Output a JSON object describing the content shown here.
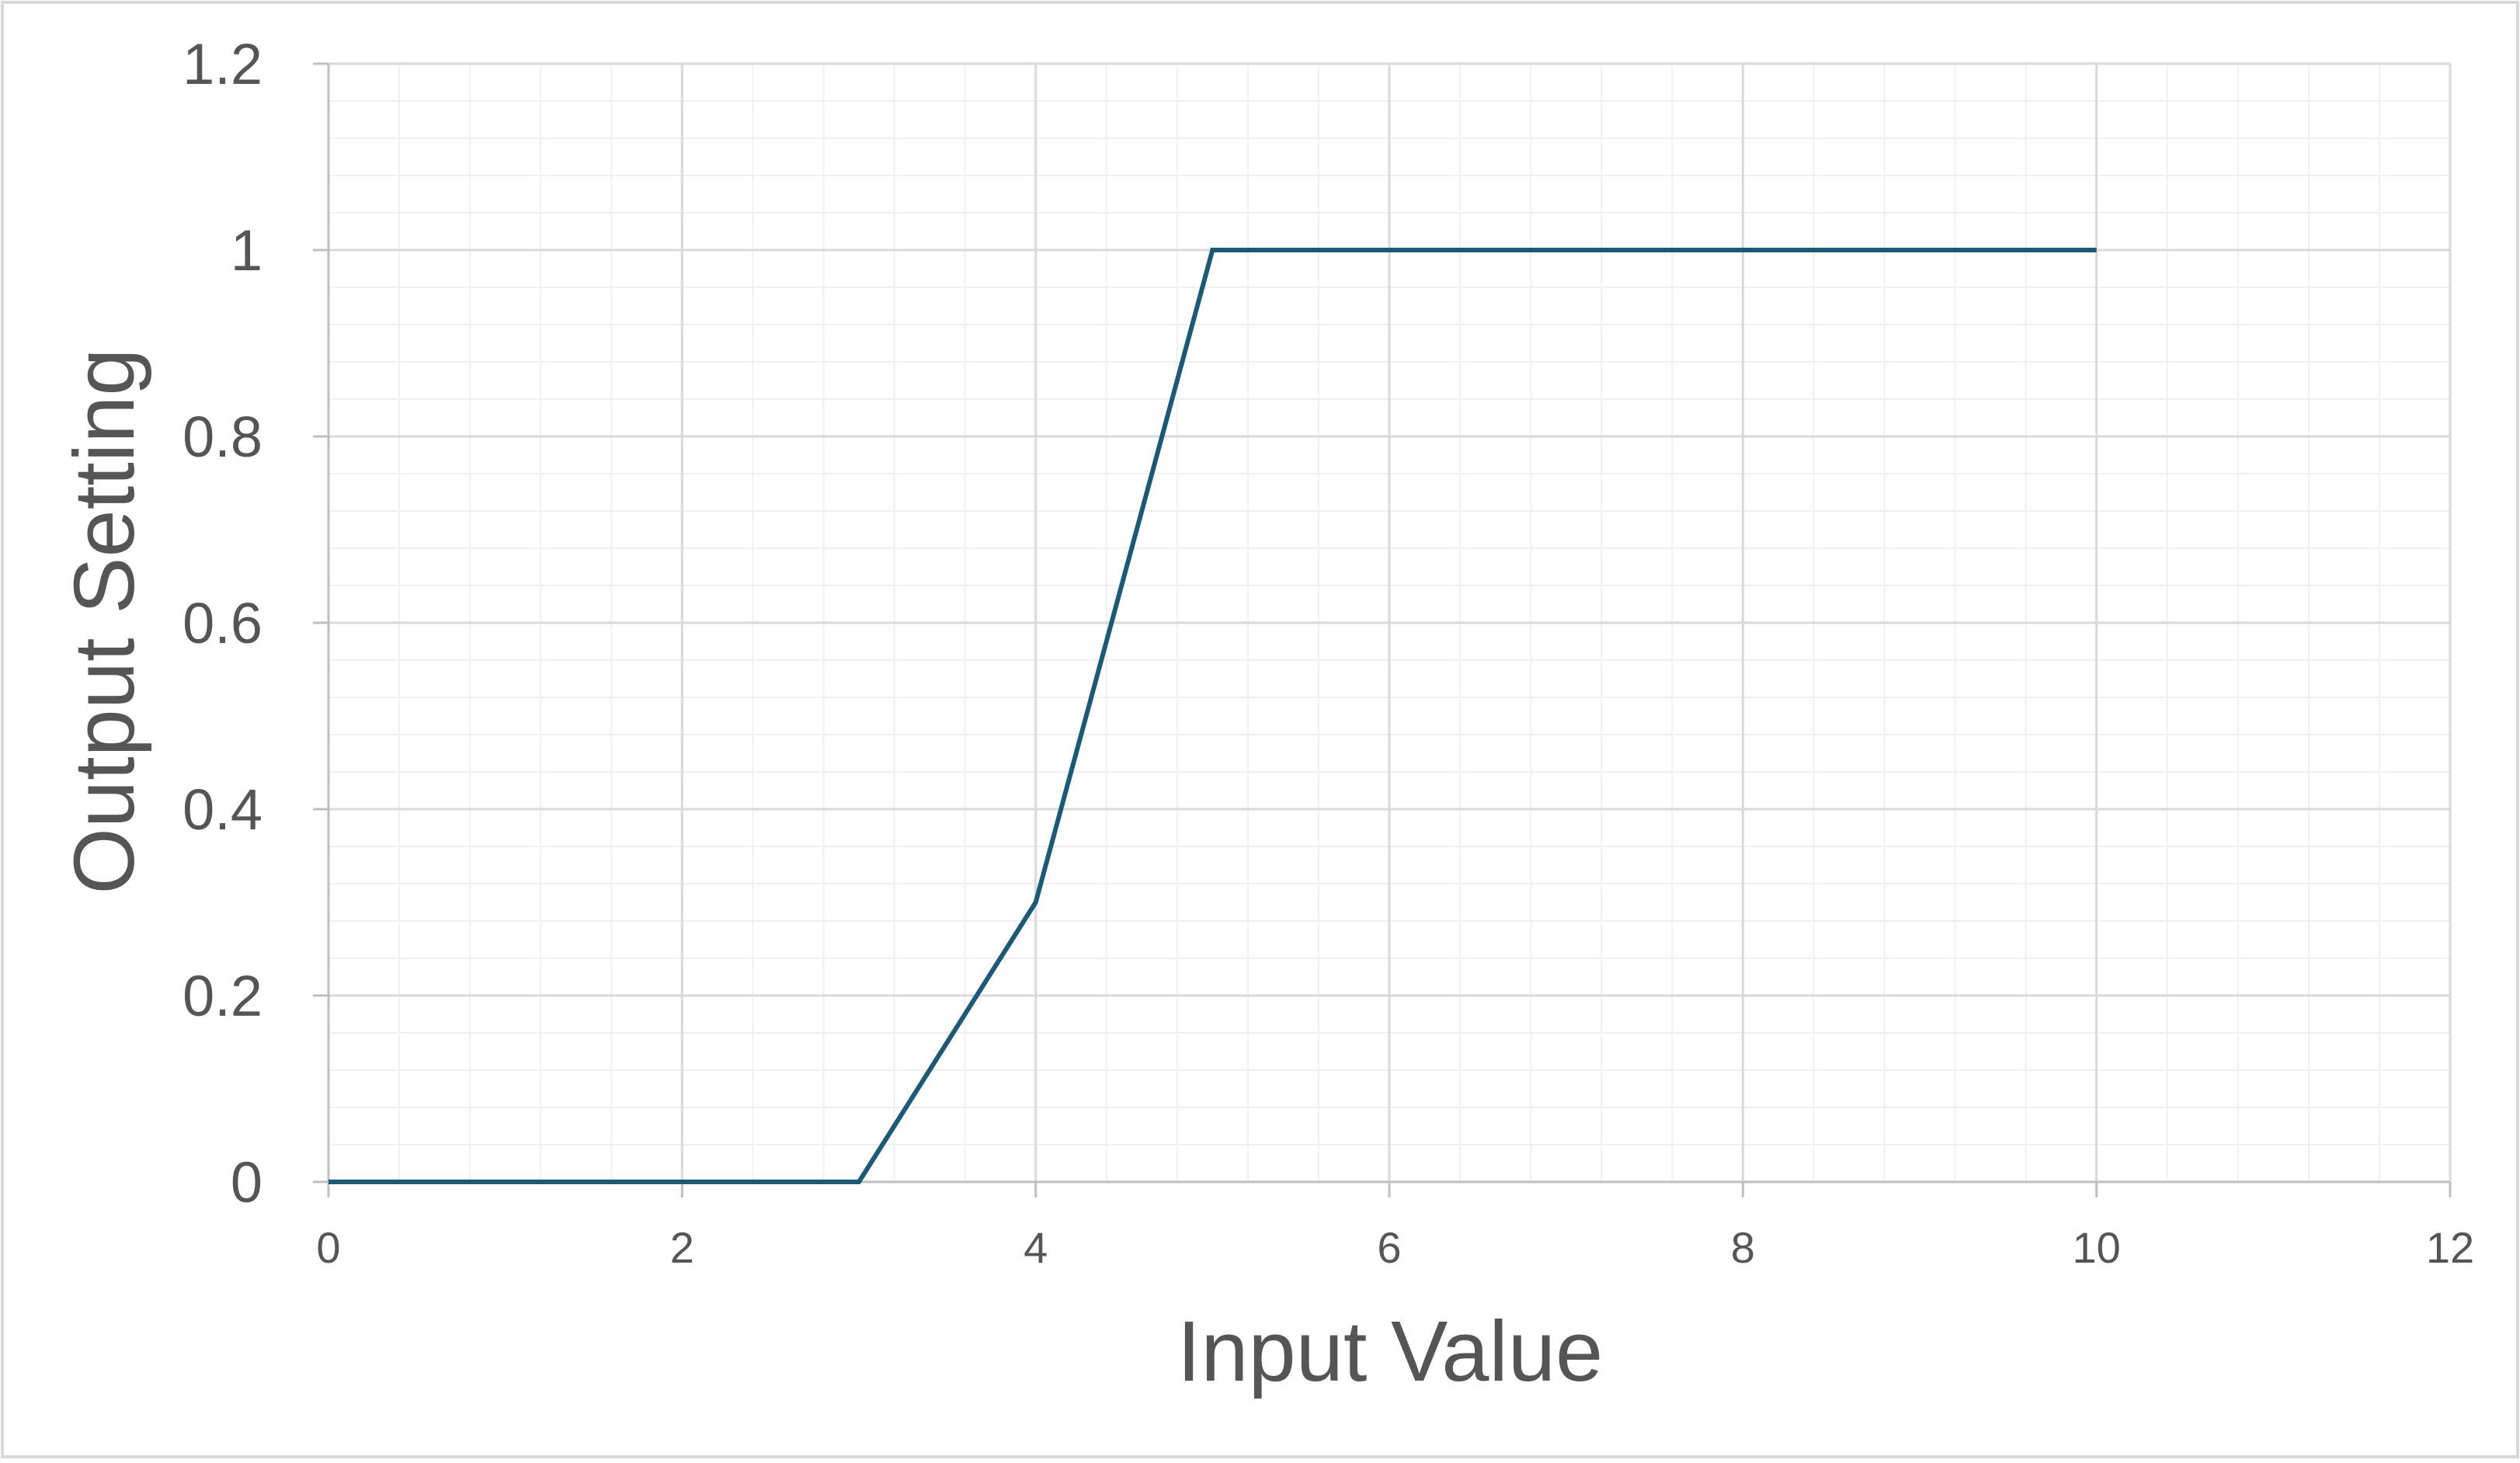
{
  "chart_data": {
    "type": "line",
    "title": "",
    "xlabel": "Input Value",
    "ylabel": "Output Setting",
    "xlim": [
      0,
      12
    ],
    "ylim": [
      0,
      1.2
    ],
    "x_ticks": [
      0,
      2,
      4,
      6,
      8,
      10,
      12
    ],
    "y_ticks": [
      0,
      0.2,
      0.4,
      0.6,
      0.8,
      1,
      1.2
    ],
    "x_tick_labels": [
      "0",
      "2",
      "4",
      "6",
      "8",
      "10",
      "12"
    ],
    "y_tick_labels": [
      "0",
      "0.2",
      "0.4",
      "0.6",
      "0.8",
      "1",
      "1.2"
    ],
    "grid": true,
    "minor_grid": true,
    "legend": "none",
    "series": [
      {
        "color": "#1a5a78",
        "x": [
          0,
          3,
          4,
          5,
          10
        ],
        "y": [
          0,
          0,
          0.3,
          1,
          1
        ]
      }
    ]
  },
  "colors": {
    "background": "#ffffff",
    "frame": "#d9d9d9",
    "major_grid": "#d9d9d9",
    "minor_grid": "#f0f0f0",
    "axis": "#bfbfbf",
    "text": "#555555"
  }
}
